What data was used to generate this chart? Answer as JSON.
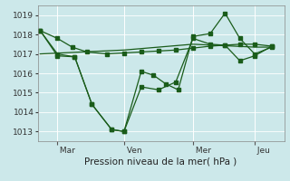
{
  "xlabel": "Pression niveau de la mer( hPa )",
  "bg_color": "#cce8ea",
  "grid_color": "#ffffff",
  "line_color": "#1a5c1a",
  "ylim": [
    1012.5,
    1019.5
  ],
  "yticks": [
    1013,
    1014,
    1015,
    1016,
    1017,
    1018,
    1019
  ],
  "xtick_labels": [
    " Mar",
    " Ven",
    " Mer",
    " Jeu"
  ],
  "xtick_positions": [
    0.08,
    0.35,
    0.63,
    0.88
  ],
  "series1_x": [
    0.01,
    0.08,
    0.14,
    0.2,
    0.28,
    0.35,
    0.42,
    0.49,
    0.56,
    0.63,
    0.7,
    0.76,
    0.82,
    0.88,
    0.95
  ],
  "series1_y": [
    1018.2,
    1017.8,
    1017.35,
    1017.1,
    1017.0,
    1017.05,
    1017.1,
    1017.15,
    1017.2,
    1017.3,
    1017.4,
    1017.45,
    1017.5,
    1017.5,
    1017.4
  ],
  "series2_x": [
    0.01,
    0.08,
    0.15,
    0.22,
    0.3,
    0.35,
    0.42,
    0.49,
    0.56,
    0.63,
    0.7,
    0.76,
    0.82,
    0.88,
    0.95
  ],
  "series2_y": [
    1018.2,
    1016.9,
    1016.85,
    1014.4,
    1013.1,
    1013.0,
    1015.3,
    1015.15,
    1015.55,
    1017.8,
    1017.5,
    1017.45,
    1016.65,
    1016.9,
    1017.4
  ],
  "series3_x": [
    0.01,
    0.08,
    0.15,
    0.22,
    0.3,
    0.35,
    0.42,
    0.47,
    0.52,
    0.57,
    0.63,
    0.7,
    0.76,
    0.82,
    0.88,
    0.95
  ],
  "series3_y": [
    1018.2,
    1017.0,
    1016.85,
    1014.4,
    1013.1,
    1013.0,
    1016.1,
    1015.9,
    1015.45,
    1015.15,
    1017.9,
    1018.05,
    1019.1,
    1017.8,
    1017.0,
    1017.35
  ],
  "series4_x": [
    0.01,
    0.35,
    0.63,
    0.88,
    0.95
  ],
  "series4_y": [
    1017.0,
    1017.2,
    1017.5,
    1017.35,
    1017.35
  ],
  "marker_size": 2.5,
  "lw": 0.9
}
